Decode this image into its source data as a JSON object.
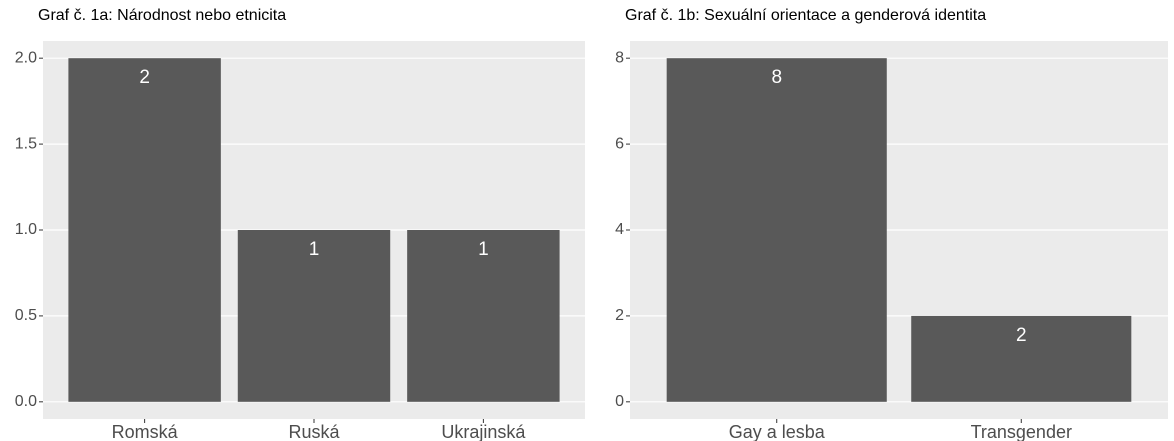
{
  "chart_data": [
    {
      "type": "bar",
      "title": "Graf č. 1a: Národnost nebo etnicita",
      "categories": [
        "Romská",
        "Ruská",
        "Ukrajinská"
      ],
      "values": [
        2,
        1,
        1
      ],
      "color": "#595959",
      "ylim": [
        -0.1,
        2.1
      ],
      "yticks": [
        {
          "value": 0,
          "label": "0.0"
        },
        0.5,
        {
          "value": 1,
          "label": "1.0"
        },
        1.5,
        {
          "value": 2,
          "label": "2.0"
        }
      ],
      "grid": true
    },
    {
      "type": "bar",
      "title": "Graf č. 1b: Sexuální orientace a genderová identita",
      "categories": [
        "Gay a lesba",
        "Transgender"
      ],
      "values": [
        8,
        2
      ],
      "color": "#595959",
      "ylim": [
        -0.4,
        8.4
      ],
      "yticks": [
        0,
        2,
        4,
        6,
        8
      ],
      "grid": true
    }
  ]
}
